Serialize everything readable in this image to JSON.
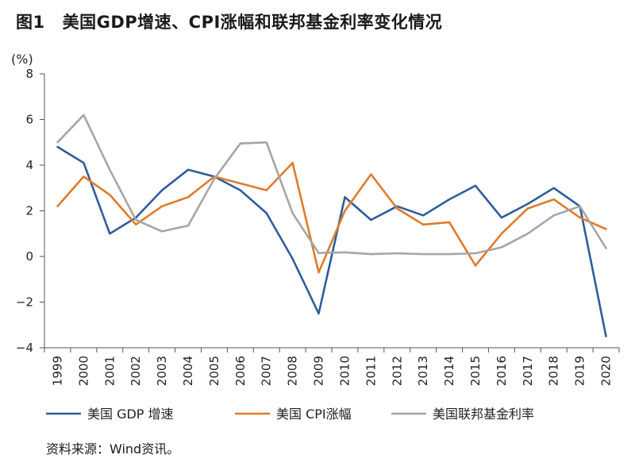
{
  "title": {
    "fig_no": "图1",
    "text": "美国GDP增速、CPI涨幅和联邦基金利率变化情况"
  },
  "source": "资料来源：Wind资讯。",
  "chart_data": {
    "type": "line",
    "title": "美国GDP增速、CPI涨幅和联邦基金利率变化情况",
    "ylabel": "(%)",
    "ylim": [
      -4,
      8
    ],
    "yticks": [
      -4,
      -2,
      0,
      2,
      4,
      6,
      8
    ],
    "ytick_labels": [
      "−4",
      "−2",
      "0",
      "2",
      "4",
      "6",
      "8"
    ],
    "grid": false,
    "legend_position": "bottom",
    "categories": [
      "1999",
      "2000",
      "2001",
      "2002",
      "2003",
      "2004",
      "2005",
      "2006",
      "2007",
      "2008",
      "2009",
      "2010",
      "2011",
      "2012",
      "2013",
      "2014",
      "2015",
      "2016",
      "2017",
      "2018",
      "2019",
      "2020"
    ],
    "series": [
      {
        "name": "美国 GDP 增速",
        "color": "#2e5e9a",
        "values": [
          4.8,
          4.1,
          1.0,
          1.7,
          2.9,
          3.8,
          3.5,
          2.9,
          1.9,
          -0.1,
          -2.5,
          2.6,
          1.6,
          2.2,
          1.8,
          2.5,
          3.1,
          1.7,
          2.3,
          3.0,
          2.2,
          -3.5
        ]
      },
      {
        "name": "美国 CPI涨幅",
        "color": "#e07b2b",
        "values": [
          2.2,
          3.5,
          2.7,
          1.4,
          2.2,
          2.6,
          3.5,
          3.2,
          2.9,
          4.1,
          -0.7,
          2.0,
          3.6,
          2.1,
          1.4,
          1.5,
          -0.4,
          1.0,
          2.1,
          2.5,
          1.7,
          1.2
        ]
      },
      {
        "name": "美国联邦基金利率",
        "color": "#a6a6a6",
        "values": [
          5.0,
          6.2,
          3.8,
          1.6,
          1.1,
          1.35,
          3.4,
          4.95,
          5.0,
          1.9,
          0.15,
          0.18,
          0.1,
          0.14,
          0.1,
          0.1,
          0.14,
          0.4,
          1.0,
          1.8,
          2.2,
          0.36
        ]
      }
    ]
  }
}
